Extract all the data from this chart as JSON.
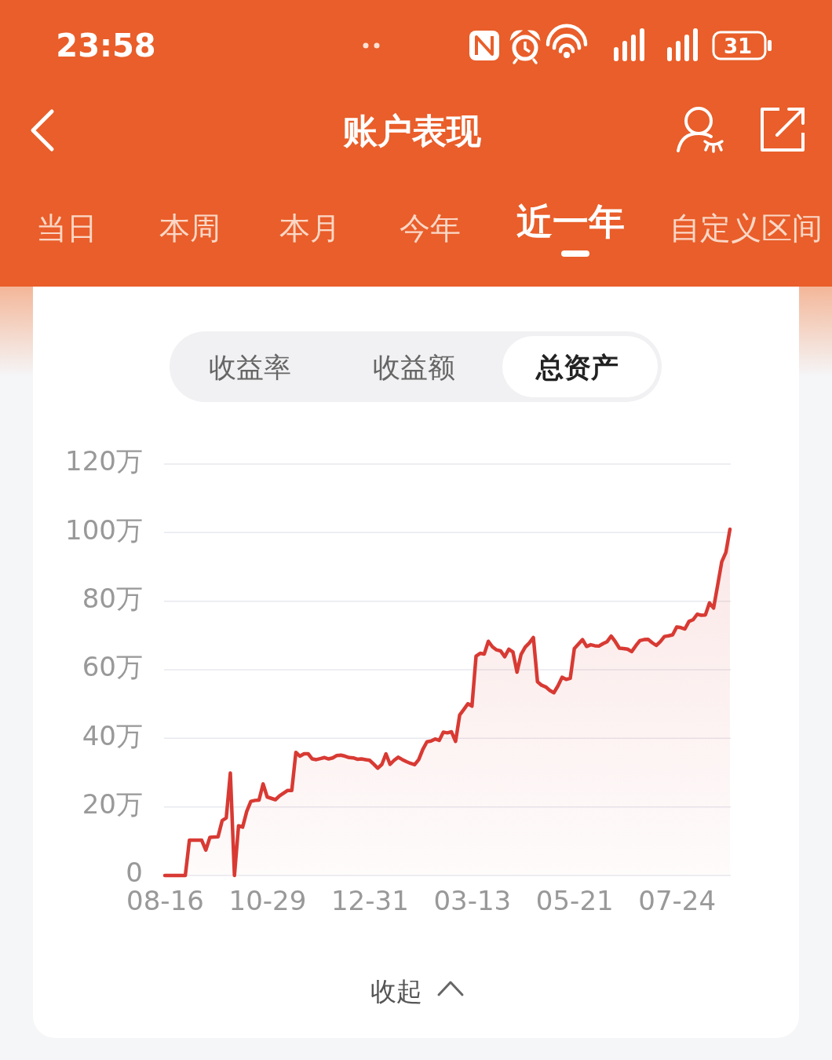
{
  "chart_data": {
    "type": "area",
    "title": "账户表现",
    "annotations": [
      "23:58",
      "31",
      "当日",
      "本周",
      "本月",
      "今年",
      "近一年",
      "自定义区间",
      "收益率",
      "收益额",
      "总资产",
      "收起"
    ],
    "categories": [
      "08-16",
      null,
      null,
      null,
      null,
      null,
      null,
      null,
      null,
      null,
      null,
      null,
      null,
      null,
      null,
      null,
      null,
      null,
      null,
      null,
      null,
      null,
      null,
      null,
      null,
      "10-29",
      null,
      null,
      null,
      null,
      null,
      null,
      null,
      null,
      null,
      null,
      null,
      null,
      null,
      null,
      null,
      null,
      null,
      null,
      null,
      null,
      null,
      null,
      null,
      null,
      "12-31",
      null,
      null,
      null,
      null,
      null,
      null,
      null,
      null,
      null,
      null,
      null,
      null,
      null,
      null,
      null,
      null,
      null,
      null,
      null,
      null,
      null,
      null,
      null,
      null,
      "03-13",
      null,
      null,
      null,
      null,
      null,
      null,
      null,
      null,
      null,
      null,
      null,
      null,
      null,
      null,
      null,
      null,
      null,
      null,
      null,
      null,
      null,
      null,
      null,
      null,
      "05-21",
      null,
      null,
      null,
      null,
      null,
      null,
      null,
      null,
      null,
      null,
      null,
      null,
      null,
      null,
      null,
      null,
      null,
      null,
      null,
      null,
      null,
      null,
      null,
      null,
      "07-24",
      null,
      null,
      null,
      null,
      null,
      null,
      null,
      null,
      null,
      null,
      null,
      null,
      null
    ],
    "values": [
      0,
      0,
      0,
      0,
      0,
      0,
      10.3,
      10.3,
      10.3,
      10.3,
      7.4,
      11.1,
      11.2,
      11.3,
      16,
      16.8,
      29.9,
      0,
      14.5,
      14.1,
      18.7,
      21.6,
      21.9,
      22,
      26.7,
      22.9,
      22.5,
      22.1,
      23.2,
      24,
      24.8,
      24.8,
      35.9,
      34.8,
      35.5,
      35.5,
      34,
      33.8,
      34.1,
      34.4,
      34,
      34.3,
      35,
      35.1,
      34.8,
      34.4,
      34.3,
      33.9,
      34,
      33.8,
      33.6,
      32.5,
      31.3,
      32.4,
      35.5,
      32.4,
      33.6,
      34.5,
      33.8,
      33.2,
      32.7,
      32.3,
      33.8,
      36.8,
      39,
      39.2,
      39.8,
      39.4,
      41.8,
      41.6,
      41.9,
      39.1,
      46.8,
      48.4,
      50.1,
      49.4,
      64,
      64.8,
      64.6,
      68.3,
      66.7,
      65.8,
      65.5,
      63.8,
      66,
      65.2,
      59.3,
      64.5,
      66.6,
      67.8,
      69.4,
      56.5,
      55.5,
      55,
      54,
      53.3,
      55.3,
      57.8,
      57.2,
      57.5,
      66.2,
      67.5,
      68.8,
      66.8,
      67.3,
      67,
      66.9,
      67.6,
      68.2,
      69.8,
      68.2,
      66.3,
      66.2,
      66,
      65.3,
      67,
      68.5,
      68.8,
      68.9,
      67.9,
      67.1,
      68.2,
      69.7,
      69.9,
      70.2,
      72.5,
      72.3,
      71.9,
      74.1,
      74.6,
      76.2,
      75.9,
      76,
      79.5,
      78,
      84.7,
      91.5,
      94.2,
      101
    ],
    "color": "#d83a33",
    "ylim": [
      0,
      120
    ],
    "yticks": [
      {
        "value": 0,
        "label": "0"
      },
      {
        "value": 20,
        "label": "20万"
      },
      {
        "value": 40,
        "label": "40万"
      },
      {
        "value": 60,
        "label": "60万"
      },
      {
        "value": 80,
        "label": "80万"
      },
      {
        "value": 100,
        "label": "100万"
      },
      {
        "value": 120,
        "label": "120万"
      }
    ],
    "grid": "y"
  }
}
